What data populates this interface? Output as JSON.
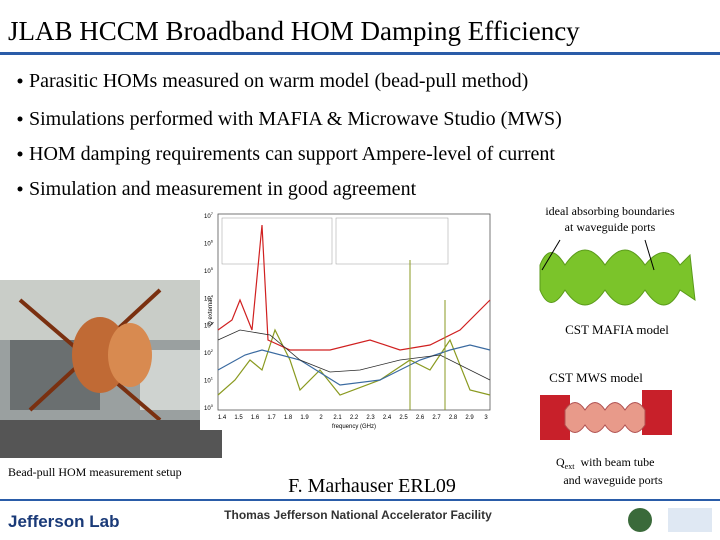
{
  "header": {
    "title": "JLAB HCCM Broadband HOM Damping Efficiency"
  },
  "bullets": [
    "Parasitic HOMs measured on warm model (bead-pull method)",
    "Simulations performed with MAFIA & Microwave Studio (MWS)",
    "HOM damping requirements can support Ampere-level of current",
    "Simulation and measurement in good agreement"
  ],
  "plot": {
    "x_label": "frequency (GHz)",
    "y_label": "Q external",
    "xticks": [
      "1.4",
      "1.5",
      "1.6",
      "1.7",
      "1.8",
      "1.9",
      "2",
      "2.1",
      "2.2",
      "2.3",
      "2.4",
      "2.5",
      "2.6",
      "2.7",
      "2.8",
      "2.9",
      "3"
    ],
    "yticks": [
      {
        "base": "10",
        "exponent": "7"
      },
      {
        "base": "10",
        "exponent": "6"
      },
      {
        "base": "10",
        "exponent": "5"
      },
      {
        "base": "10",
        "exponent": "4"
      },
      {
        "base": "10",
        "exponent": "3"
      },
      {
        "base": "10",
        "exponent": "2"
      },
      {
        "base": "10",
        "exponent": "1"
      },
      {
        "base": "10",
        "exponent": "0"
      }
    ]
  },
  "annotations": {
    "ports": [
      "ideal absorbing boundaries",
      "at waveguide ports"
    ],
    "mafia": "CST MAFIA model",
    "mws": "CST MWS model",
    "qext": {
      "symbol": "Q",
      "subscript": "ext",
      "line1": "with beam tube",
      "line2": "and waveguide ports"
    },
    "photo_caption": "Bead-pull HOM measurement setup",
    "author": "F. Marhauser ERL09"
  },
  "footer": {
    "logo": "Jefferson Lab",
    "facility": "Thomas Jefferson National Accelerator Facility"
  }
}
